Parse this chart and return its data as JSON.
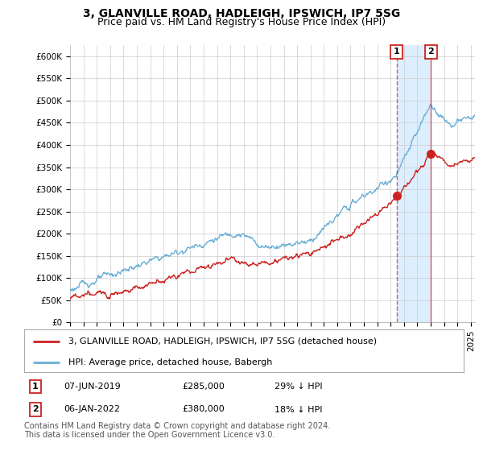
{
  "title": "3, GLANVILLE ROAD, HADLEIGH, IPSWICH, IP7 5SG",
  "subtitle": "Price paid vs. HM Land Registry's House Price Index (HPI)",
  "ylim": [
    0,
    625000
  ],
  "yticks": [
    0,
    50000,
    100000,
    150000,
    200000,
    250000,
    300000,
    350000,
    400000,
    450000,
    500000,
    550000,
    600000
  ],
  "ytick_labels": [
    "£0",
    "£50K",
    "£100K",
    "£150K",
    "£200K",
    "£250K",
    "£300K",
    "£350K",
    "£400K",
    "£450K",
    "£500K",
    "£550K",
    "£600K"
  ],
  "legend_line1": "3, GLANVILLE ROAD, HADLEIGH, IPSWICH, IP7 5SG (detached house)",
  "legend_line2": "HPI: Average price, detached house, Babergh",
  "transaction1_label": "1",
  "transaction1_date": "07-JUN-2019",
  "transaction1_price": "£285,000",
  "transaction1_pct": "29% ↓ HPI",
  "transaction2_label": "2",
  "transaction2_date": "06-JAN-2022",
  "transaction2_price": "£380,000",
  "transaction2_pct": "18% ↓ HPI",
  "footer": "Contains HM Land Registry data © Crown copyright and database right 2024.\nThis data is licensed under the Open Government Licence v3.0.",
  "hpi_color": "#6baed6",
  "price_color": "#cc2222",
  "shade_color": "#ddeeff",
  "background_color": "#ffffff",
  "grid_color": "#cccccc",
  "transaction1_x": 2019.44,
  "transaction1_y": 285000,
  "transaction2_x": 2022.02,
  "transaction2_y": 380000,
  "xlim_left": 1995.0,
  "xlim_right": 2025.3,
  "title_fontsize": 10,
  "subtitle_fontsize": 9,
  "tick_fontsize": 7.5,
  "legend_fontsize": 8,
  "footer_fontsize": 7
}
